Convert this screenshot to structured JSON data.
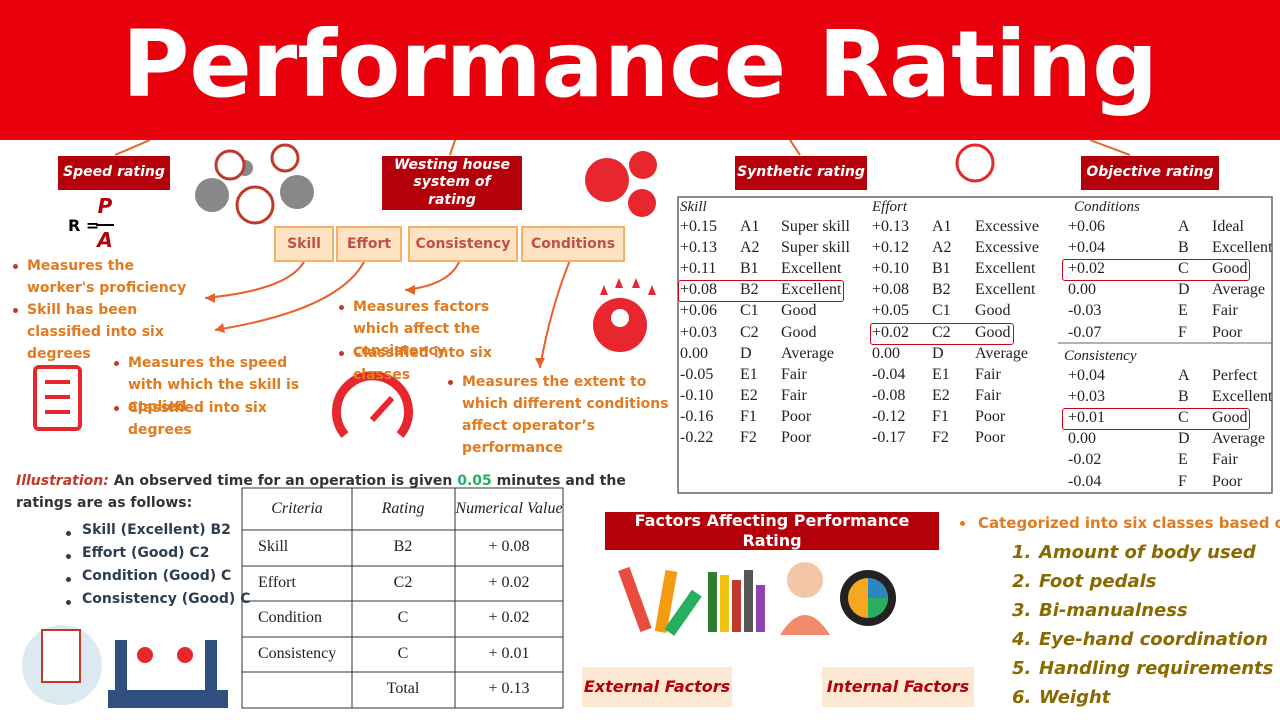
{
  "header": {
    "title": "Performance Rating"
  },
  "labels": {
    "speed": "Speed rating",
    "westing": "Westing house system of rating",
    "synthetic": "Synthetic rating",
    "objective": "Objective rating"
  },
  "formula": {
    "lhs": "R =",
    "num": "P",
    "den": "A"
  },
  "factors": [
    "Skill",
    "Effort",
    "Consistency",
    "Conditions"
  ],
  "skill_notes": [
    "Measures the worker's proficiency",
    "Skill has been classified into six degrees"
  ],
  "effort_notes": [
    "Measures the speed with which the skill is applied",
    "Classified into six degrees"
  ],
  "consistency_notes": [
    "Measures factors which affect the consistency",
    "Classified into six classes"
  ],
  "conditions_notes": [
    "Measures the extent to which different conditions affect operator’s performance"
  ],
  "illustration": {
    "label": "Illustration:",
    "before": "An observed time for an operation is given",
    "time": "0.05",
    "after": "minutes and the ratings are as follows:",
    "bullets": [
      "Skill (Excellent) B2",
      "Effort (Good) C2",
      "Condition (Good) C",
      "Consistency (Good) C"
    ]
  },
  "criteria_table": {
    "header": [
      "Criteria",
      "Rating",
      "Numerical Value"
    ],
    "rows": [
      [
        "Skill",
        "B2",
        "+ 0.08"
      ],
      [
        "Effort",
        "C2",
        "+ 0.02"
      ],
      [
        "Condition",
        "C",
        "+ 0.02"
      ],
      [
        "Consistency",
        "C",
        "+ 0.01"
      ]
    ],
    "total": {
      "label": "Total",
      "value": "+ 0.13"
    }
  },
  "westinghouse": {
    "skill": {
      "title": "Skill",
      "highlight": 3,
      "rows": [
        [
          "+0.15",
          "A1",
          "Super skill"
        ],
        [
          "+0.13",
          "A2",
          "Super skill"
        ],
        [
          "+0.11",
          "B1",
          "Excellent"
        ],
        [
          "+0.08",
          "B2",
          "Excellent"
        ],
        [
          "+0.06",
          "C1",
          "Good"
        ],
        [
          "+0.03",
          "C2",
          "Good"
        ],
        [
          "0.00",
          "D",
          "Average"
        ],
        [
          "-0.05",
          "E1",
          "Fair"
        ],
        [
          "-0.10",
          "E2",
          "Fair"
        ],
        [
          "-0.16",
          "F1",
          "Poor"
        ],
        [
          "-0.22",
          "F2",
          "Poor"
        ]
      ]
    },
    "effort": {
      "title": "Effort",
      "highlight": 5,
      "rows": [
        [
          "+0.13",
          "A1",
          "Excessive"
        ],
        [
          "+0.12",
          "A2",
          "Excessive"
        ],
        [
          "+0.10",
          "B1",
          "Excellent"
        ],
        [
          "+0.08",
          "B2",
          "Excellent"
        ],
        [
          "+0.05",
          "C1",
          "Good"
        ],
        [
          "+0.02",
          "C2",
          "Good"
        ],
        [
          "0.00",
          "D",
          "Average"
        ],
        [
          "-0.04",
          "E1",
          "Fair"
        ],
        [
          "-0.08",
          "E2",
          "Fair"
        ],
        [
          "-0.12",
          "F1",
          "Poor"
        ],
        [
          "-0.17",
          "F2",
          "Poor"
        ]
      ]
    },
    "conditions": {
      "title": "Conditions",
      "highlight": 2,
      "rows": [
        [
          "+0.06",
          "A",
          "Ideal"
        ],
        [
          "+0.04",
          "B",
          "Excellent"
        ],
        [
          "+0.02",
          "C",
          "Good"
        ],
        [
          "0.00",
          "D",
          "Average"
        ],
        [
          "-0.03",
          "E",
          "Fair"
        ],
        [
          "-0.07",
          "F",
          "Poor"
        ]
      ]
    },
    "consistency": {
      "title": "Consistency",
      "highlight": 2,
      "rows": [
        [
          "+0.04",
          "A",
          "Perfect"
        ],
        [
          "+0.03",
          "B",
          "Excellent"
        ],
        [
          "+0.01",
          "C",
          "Good"
        ],
        [
          "0.00",
          "D",
          "Average"
        ],
        [
          "-0.02",
          "E",
          "Fair"
        ],
        [
          "-0.04",
          "F",
          "Poor"
        ]
      ]
    }
  },
  "factors_panel": {
    "title": "Factors Affecting Performance Rating",
    "external": "External Factors",
    "internal": "Internal Factors"
  },
  "classes": {
    "intro": "Categorized into six classes based on:",
    "items": [
      {
        "number": "1.",
        "text": "Amount of body used"
      },
      {
        "number": "2.",
        "text": "Foot pedals"
      },
      {
        "number": "3.",
        "text": "Bi-manualness"
      },
      {
        "number": "4.",
        "text": "Eye-hand coordination"
      },
      {
        "number": "5.",
        "text": "Handling requirements"
      },
      {
        "number": "6.",
        "text": "Weight"
      }
    ]
  }
}
